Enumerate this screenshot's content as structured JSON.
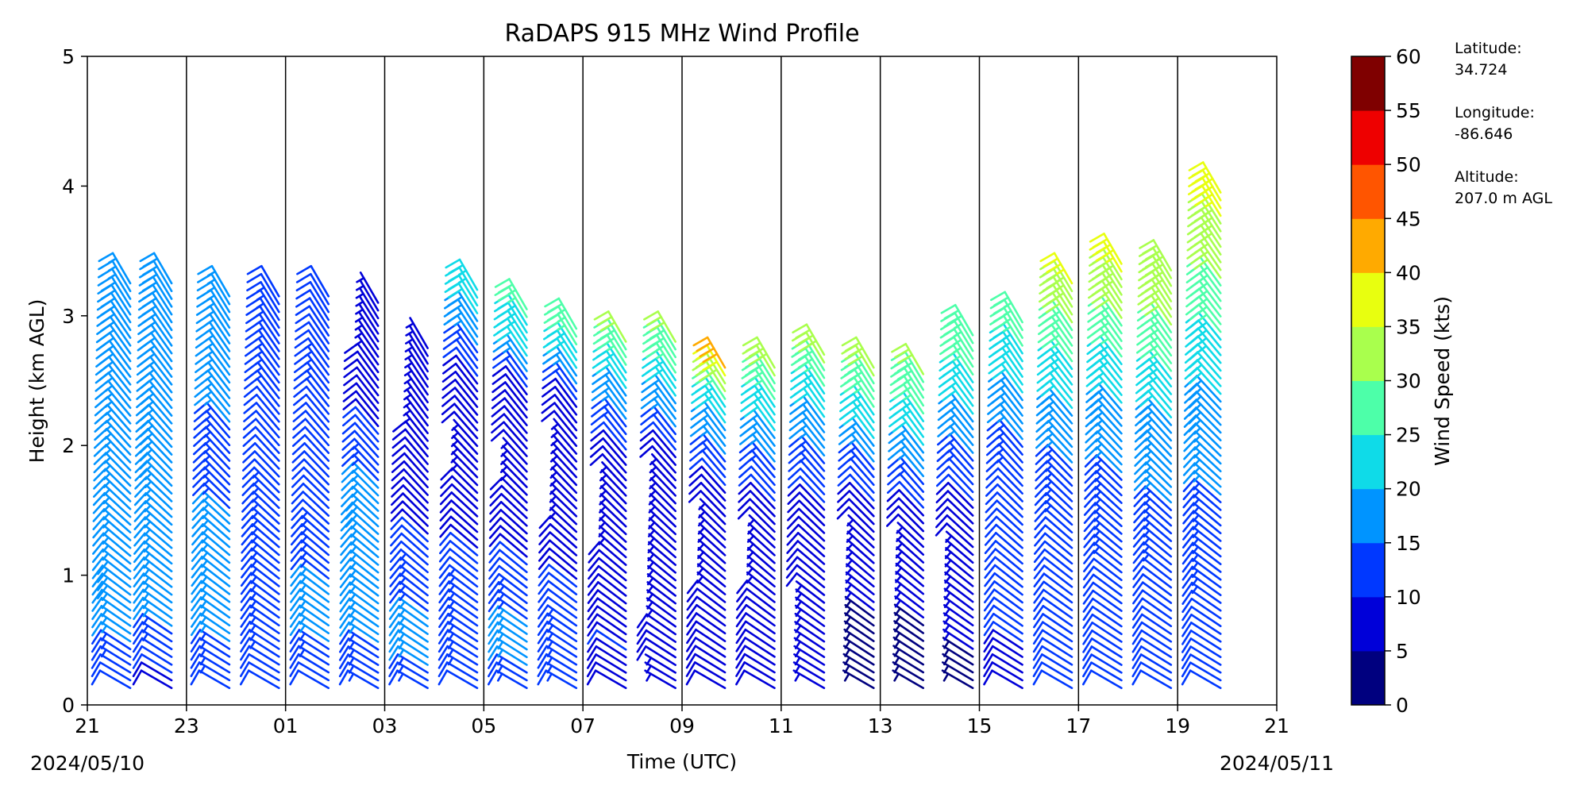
{
  "chart_data": {
    "type": "wind_barb_profile",
    "title": "RaDAPS 915 MHz Wind Profile",
    "xlabel": "Time (UTC)",
    "ylabel": "Height (km AGL)",
    "date_left": "2024/05/10",
    "date_right": "2024/05/11",
    "x_ticks": [
      "21",
      "23",
      "01",
      "03",
      "05",
      "07",
      "09",
      "11",
      "13",
      "15",
      "17",
      "19",
      "21"
    ],
    "ylim": [
      0,
      5
    ],
    "y_ticks": [
      "0",
      "1",
      "2",
      "3",
      "4",
      "5"
    ],
    "grid": "vertical lines at each 2-hour tick",
    "colorbar": {
      "label": "Wind Speed (kts)",
      "ticks": [
        "0",
        "5",
        "10",
        "15",
        "20",
        "25",
        "30",
        "35",
        "40",
        "45",
        "50",
        "55",
        "60"
      ],
      "levels": [
        0,
        5,
        10,
        15,
        20,
        25,
        30,
        35,
        40,
        45,
        50,
        55,
        60
      ],
      "colors": [
        "#00007f",
        "#0000d9",
        "#0038ff",
        "#0094ff",
        "#0fdbe8",
        "#4dffa9",
        "#a9ff4d",
        "#e8ff0f",
        "#ffaa00",
        "#ff5500",
        "#ee0000",
        "#7f0000"
      ]
    },
    "station_info": {
      "latitude_label": "Latitude:",
      "latitude": "34.724",
      "longitude_label": "Longitude:",
      "longitude": "-86.646",
      "altitude_label": "Altitude:",
      "altitude": "207.0 m AGL"
    },
    "profiles": [
      {
        "time": "2024-05-10 21:52",
        "top_km": 3.25,
        "speeds_kts": [
          10,
          15,
          18,
          17,
          16,
          16,
          17,
          18,
          18,
          17
        ]
      },
      {
        "time": "2024-05-10 22:42",
        "top_km": 3.25,
        "speeds_kts": [
          9,
          14,
          17,
          17,
          17,
          18,
          18,
          19,
          20,
          18
        ]
      },
      {
        "time": "2024-05-10 23:52",
        "top_km": 3.15,
        "speeds_kts": [
          12,
          15,
          16,
          16,
          15,
          14,
          15,
          16,
          17,
          16
        ]
      },
      {
        "time": "2024-05-11 00:52",
        "top_km": 3.15,
        "speeds_kts": [
          10,
          14,
          15,
          14,
          13,
          12,
          12,
          13,
          14,
          12
        ]
      },
      {
        "time": "2024-05-11 01:52",
        "top_km": 3.15,
        "speeds_kts": [
          10,
          15,
          16,
          14,
          12,
          11,
          12,
          13,
          12,
          11
        ]
      },
      {
        "time": "2024-05-11 02:52",
        "top_km": 3.1,
        "speeds_kts": [
          14,
          15,
          16,
          17,
          18,
          14,
          10,
          8,
          7,
          6
        ]
      },
      {
        "time": "2024-05-11 03:52",
        "top_km": 2.75,
        "speeds_kts": [
          14,
          16,
          15,
          13,
          10,
          9,
          8,
          7,
          6,
          5
        ]
      },
      {
        "time": "2024-05-11 04:52",
        "top_km": 3.2,
        "speeds_kts": [
          12,
          14,
          14,
          10,
          8,
          7,
          8,
          10,
          18,
          24
        ]
      },
      {
        "time": "2024-05-11 05:52",
        "top_km": 3.05,
        "speeds_kts": [
          14,
          16,
          14,
          10,
          8,
          7,
          8,
          9,
          22,
          26
        ]
      },
      {
        "time": "2024-05-11 06:52",
        "top_km": 2.9,
        "speeds_kts": [
          14,
          14,
          12,
          9,
          7,
          6,
          7,
          9,
          22,
          27
        ]
      },
      {
        "time": "2024-05-11 07:52",
        "top_km": 2.8,
        "speeds_kts": [
          9,
          10,
          9,
          8,
          6,
          7,
          9,
          15,
          22,
          30
        ]
      },
      {
        "time": "2024-05-11 08:52",
        "top_km": 2.8,
        "speeds_kts": [
          7,
          8,
          7,
          6,
          5,
          6,
          9,
          17,
          24,
          31
        ]
      },
      {
        "time": "2024-05-11 09:52",
        "top_km": 2.6,
        "speeds_kts": [
          8,
          9,
          8,
          7,
          6,
          8,
          12,
          18,
          25,
          42
        ]
      },
      {
        "time": "2024-05-11 10:52",
        "top_km": 2.6,
        "speeds_kts": [
          8,
          9,
          8,
          7,
          7,
          9,
          13,
          19,
          25,
          33
        ]
      },
      {
        "time": "2024-05-11 11:52",
        "top_km": 2.7,
        "speeds_kts": [
          6,
          7,
          7,
          8,
          8,
          10,
          14,
          19,
          25,
          33
        ]
      },
      {
        "time": "2024-05-11 12:52",
        "top_km": 2.6,
        "speeds_kts": [
          4,
          4,
          5,
          6,
          7,
          9,
          13,
          20,
          26,
          32
        ]
      },
      {
        "time": "2024-05-11 13:52",
        "top_km": 2.55,
        "speeds_kts": [
          3,
          4,
          5,
          6,
          7,
          10,
          15,
          21,
          26,
          30
        ]
      },
      {
        "time": "2024-05-11 14:52",
        "top_km": 2.85,
        "speeds_kts": [
          4,
          5,
          6,
          7,
          8,
          11,
          15,
          20,
          25,
          28
        ]
      },
      {
        "time": "2024-05-11 15:52",
        "top_km": 2.95,
        "speeds_kts": [
          9,
          10,
          10,
          10,
          11,
          12,
          15,
          19,
          24,
          27
        ]
      },
      {
        "time": "2024-05-11 16:52",
        "top_km": 3.25,
        "speeds_kts": [
          10,
          11,
          11,
          12,
          13,
          15,
          19,
          24,
          30,
          36
        ]
      },
      {
        "time": "2024-05-11 17:52",
        "top_km": 3.4,
        "speeds_kts": [
          10,
          11,
          12,
          13,
          14,
          16,
          20,
          25,
          31,
          36
        ]
      },
      {
        "time": "2024-05-11 18:52",
        "top_km": 3.35,
        "speeds_kts": [
          10,
          11,
          12,
          13,
          15,
          17,
          21,
          26,
          31,
          34
        ]
      },
      {
        "time": "2024-05-11 19:52",
        "top_km": 3.95,
        "speeds_kts": [
          11,
          12,
          13,
          14,
          16,
          19,
          23,
          28,
          33,
          37
        ]
      }
    ]
  }
}
